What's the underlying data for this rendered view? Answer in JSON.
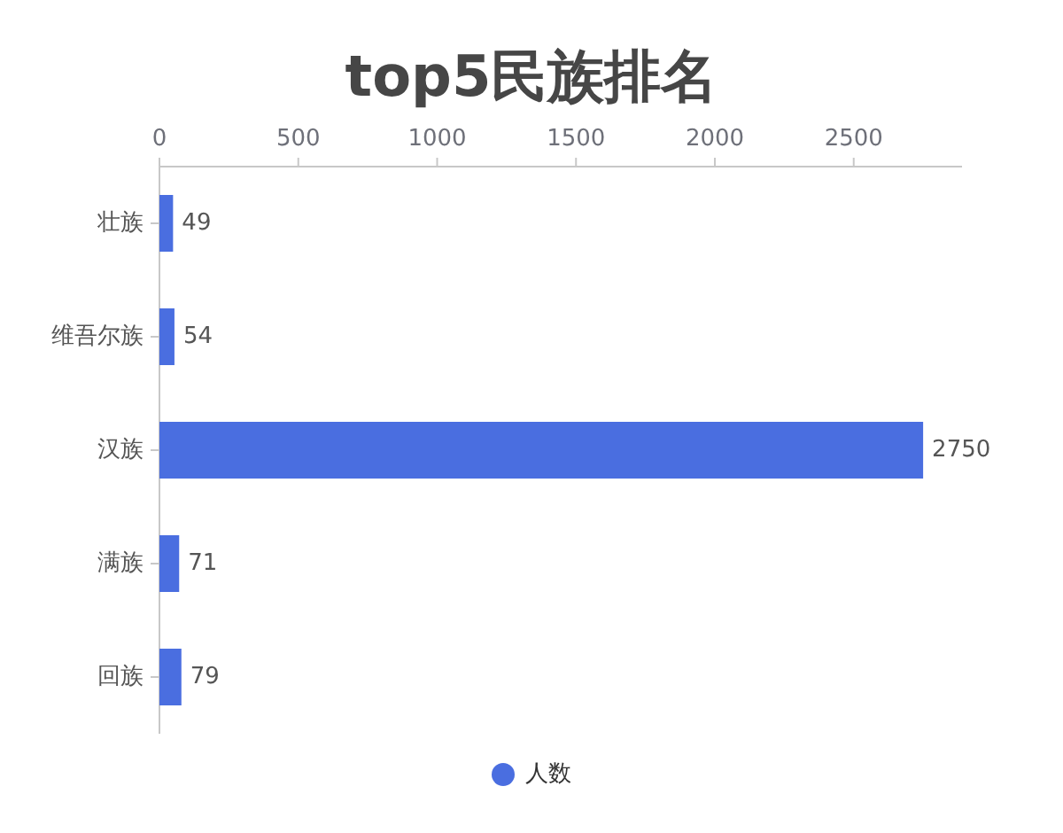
{
  "chart_data": {
    "type": "bar",
    "orientation": "horizontal",
    "title": "top5民族排名",
    "categories": [
      "壮族",
      "维吾尔族",
      "汉族",
      "满族",
      "回族"
    ],
    "series": [
      {
        "name": "人数",
        "color": "#4a6ee0",
        "values": [
          49,
          54,
          2750,
          71,
          79
        ]
      }
    ],
    "xlim": [
      0,
      2890
    ],
    "xticks": [
      0,
      500,
      1000,
      1500,
      2000,
      2500
    ],
    "data_labels": true,
    "legend": "bottom"
  }
}
